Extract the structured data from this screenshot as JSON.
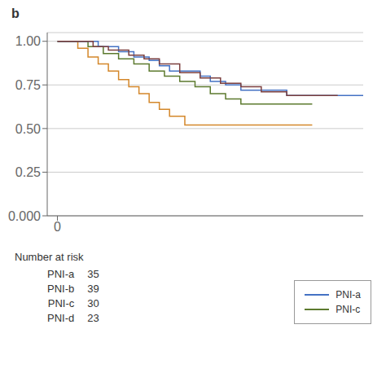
{
  "chart_data": {
    "type": "step",
    "title": "b",
    "xlim": [
      -2,
      60
    ],
    "xticks": [
      0
    ],
    "ylim": [
      0.0,
      1.05
    ],
    "yticks": [
      {
        "value": 0.0,
        "label": "0.000"
      },
      0.25,
      {
        "value": 0.5,
        "label": "0.50"
      },
      0.75,
      {
        "value": 1.0,
        "label": "1.00"
      }
    ],
    "grid": "y",
    "legend": "lower right",
    "series": [
      {
        "color": "#D4872A",
        "x": [
          0,
          2,
          4,
          6,
          8,
          10,
          12,
          14,
          16,
          18,
          20,
          22,
          25,
          28,
          32,
          36,
          40,
          45,
          50
        ],
        "values": [
          1.0,
          1.0,
          0.96,
          0.91,
          0.87,
          0.83,
          0.78,
          0.74,
          0.7,
          0.65,
          0.61,
          0.57,
          0.52,
          0.52,
          0.52,
          0.52,
          0.52,
          0.52,
          0.52
        ]
      },
      {
        "name": "PNI-c",
        "color": "#5C7A2E",
        "x": [
          0,
          3,
          6,
          9,
          12,
          15,
          18,
          21,
          24,
          27,
          30,
          33,
          36,
          40,
          45,
          50
        ],
        "values": [
          1.0,
          1.0,
          0.97,
          0.93,
          0.9,
          0.87,
          0.83,
          0.8,
          0.77,
          0.74,
          0.7,
          0.67,
          0.64,
          0.64,
          0.64,
          0.64
        ]
      },
      {
        "name": "PNI-a",
        "color": "#4472C4",
        "x": [
          0,
          5,
          8,
          12,
          15,
          18,
          20,
          22,
          25,
          28,
          30,
          33,
          36,
          40,
          45,
          50,
          55,
          60
        ],
        "values": [
          1.0,
          1.0,
          0.97,
          0.94,
          0.91,
          0.89,
          0.86,
          0.83,
          0.83,
          0.8,
          0.77,
          0.75,
          0.72,
          0.72,
          0.69,
          0.69,
          0.69,
          0.69
        ]
      },
      {
        "color": "#7B3F3F",
        "x": [
          0,
          4,
          7,
          10,
          14,
          17,
          20,
          24,
          28,
          32,
          36,
          40,
          45,
          50,
          55
        ],
        "values": [
          1.0,
          1.0,
          0.97,
          0.95,
          0.92,
          0.9,
          0.87,
          0.82,
          0.79,
          0.76,
          0.74,
          0.71,
          0.69,
          0.69,
          0.69
        ]
      }
    ],
    "number_at_risk": {
      "title": "Number at risk",
      "categories": [
        "PNI-a",
        "PNI-b",
        "PNI-c",
        "PNI-d"
      ],
      "values": [
        35,
        39,
        30,
        23
      ]
    }
  }
}
